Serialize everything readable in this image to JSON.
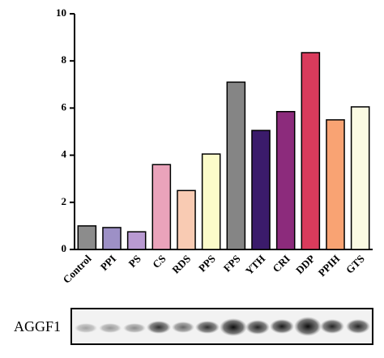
{
  "chart_data": {
    "type": "bar",
    "categories": [
      "Control",
      "PPI",
      "PS",
      "CS",
      "RDS",
      "PPS",
      "FPS",
      "YTH",
      "CRI",
      "DDP",
      "PPIH",
      "GTS"
    ],
    "values": [
      1.0,
      0.93,
      0.75,
      3.6,
      2.5,
      4.05,
      7.1,
      5.05,
      5.85,
      8.35,
      5.5,
      6.05
    ],
    "colors": [
      "#8c8c8c",
      "#9d90c6",
      "#b99ad2",
      "#eaa3bb",
      "#f9cbb3",
      "#fbfbc9",
      "#858585",
      "#3b1b6b",
      "#8c2b7c",
      "#d93b5c",
      "#f9a373",
      "#fbfbe3"
    ],
    "ylim": [
      0,
      10
    ],
    "yticks": [
      0,
      2,
      4,
      6,
      8,
      10
    ],
    "grid": false
  },
  "blot": {
    "label": "AGGF1"
  }
}
